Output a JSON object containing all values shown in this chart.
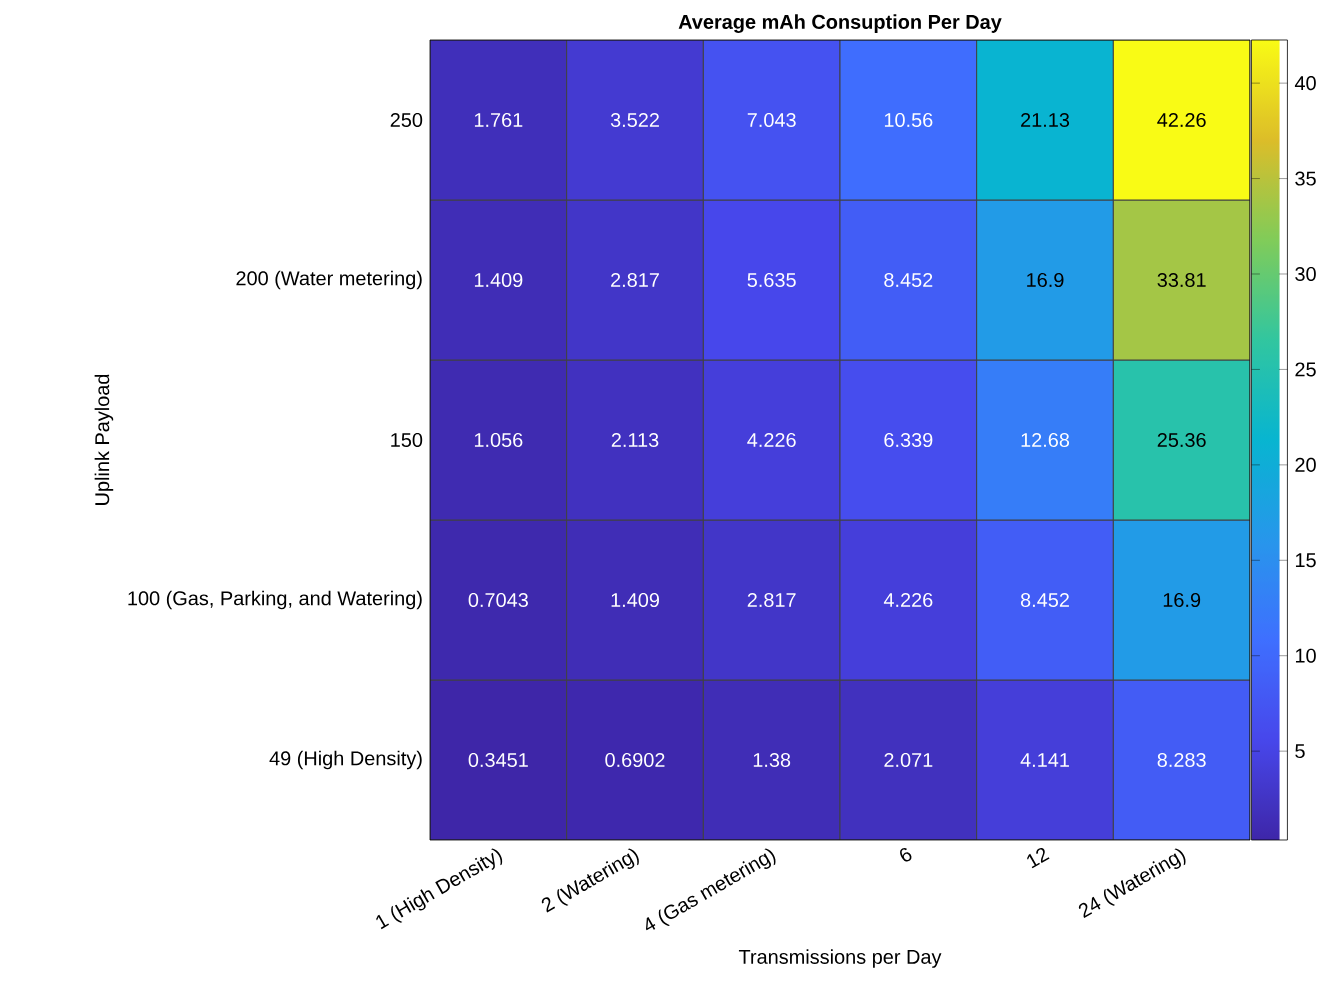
{
  "chart_data": {
    "type": "heatmap",
    "title": "Average mAh Consuption Per Day",
    "xlabel": "Transmissions per Day",
    "ylabel": "Uplink Payload",
    "categories": [
      "1 (High Density)",
      "2 (Watering)",
      "4 (Gas metering)",
      "6",
      "12",
      "24 (Watering)"
    ],
    "y_categories": [
      "250",
      "200 (Water metering)",
      "150",
      "100 (Gas, Parking, and Watering)",
      "49 (High Density)"
    ],
    "cells": [
      [
        1.761,
        3.522,
        7.043,
        10.56,
        21.13,
        42.26
      ],
      [
        1.409,
        2.817,
        5.635,
        8.452,
        16.9,
        33.81
      ],
      [
        1.056,
        2.113,
        4.226,
        6.339,
        12.68,
        25.36
      ],
      [
        0.7043,
        1.409,
        2.817,
        4.226,
        8.452,
        16.9
      ],
      [
        0.3451,
        0.6902,
        1.38,
        2.071,
        4.141,
        8.283
      ]
    ],
    "clim": [
      0.3451,
      42.26
    ],
    "cticks": [
      5,
      10,
      15,
      20,
      25,
      30,
      35,
      40
    ],
    "data_labels": true
  }
}
